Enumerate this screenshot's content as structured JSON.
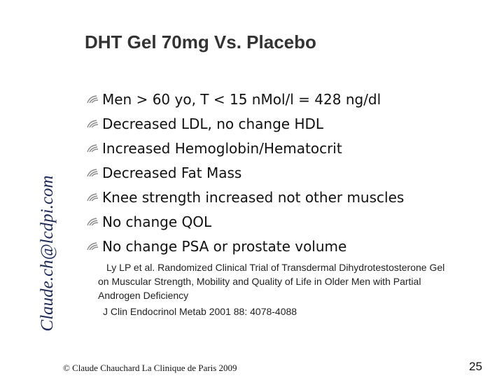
{
  "watermark": "Claude.ch@lcdpi.com",
  "title": "DHT Gel 70mg Vs. Placebo",
  "bullets": [
    "Men > 60 yo, T < 15 nMol/l = 428 ng/dl",
    "Decreased LDL, no change HDL",
    "Increased Hemoglobin/Hematocrit",
    "Decreased Fat Mass",
    "Knee strength increased not other muscles",
    "No change QOL",
    "No change PSA or prostate volume"
  ],
  "reference": [
    "Ly LP et al. Randomized Clinical Trial of Transdermal Dihydrotestosterone Gel",
    "on Muscular Strength, Mobility and Quality of Life in Older Men with Partial",
    "Androgen Deficiency",
    "J Clin Endocrinol Metab 2001 88: 4078-4088"
  ],
  "footer": "© Claude Chauchard La Clinique de Paris 2009",
  "page_number": "25"
}
